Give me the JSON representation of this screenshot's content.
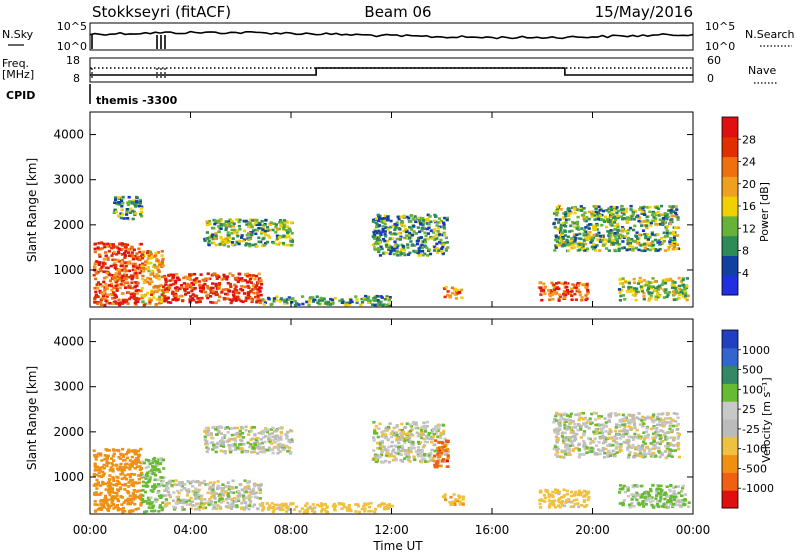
{
  "header": {
    "station": "Stokkseyri (fitACF)",
    "beam": "Beam 06",
    "date": "15/May/2016"
  },
  "noise_panel": {
    "left_label": "N.Sky",
    "right_label": "N.Search",
    "left_ticks": [
      "10^5",
      "10^0"
    ],
    "right_ticks": [
      "10^5",
      "10^0"
    ]
  },
  "freq_panel": {
    "left_label_1": "Freq.",
    "left_label_2": "[MHz]",
    "right_label": "Nave",
    "left_ticks": [
      "18",
      "8"
    ],
    "right_ticks": [
      "60",
      "0"
    ]
  },
  "cpid_panel": {
    "label": "CPID",
    "program": "themis -3300"
  },
  "colors": {
    "power_scale": [
      "#2030e0",
      "#1040a0",
      "#2e8b57",
      "#66b23a",
      "#f0d000",
      "#f0a020",
      "#f07010",
      "#e03000",
      "#e01010"
    ],
    "velocity_scale": [
      "#e01010",
      "#f06010",
      "#f09010",
      "#f0c040",
      "#bbbbbb",
      "#c8c8c8",
      "#66bb33",
      "#338866",
      "#3366cc",
      "#2040c0"
    ]
  },
  "chart_data": [
    {
      "type": "heatmap",
      "name": "power",
      "ylabel": "Slant Range [km]",
      "ylim": [
        180,
        4500
      ],
      "xlim_hours": [
        0,
        24
      ],
      "yticks": [
        1000,
        2000,
        3000,
        4000
      ],
      "colorbar_label": "Power [dB]",
      "colorbar_ticks": [
        "4",
        "8",
        "12",
        "16",
        "20",
        "24",
        "28"
      ],
      "colorbar_range": [
        0,
        32
      ],
      "regions": [
        {
          "x0": 0.1,
          "x1": 2.0,
          "y0": 200,
          "y1": 1600,
          "level": 26
        },
        {
          "x0": 2.0,
          "x1": 2.9,
          "y0": 200,
          "y1": 1400,
          "level": 20
        },
        {
          "x0": 2.9,
          "x1": 6.8,
          "y0": 250,
          "y1": 900,
          "level": 27
        },
        {
          "x0": 6.8,
          "x1": 12.0,
          "y0": 200,
          "y1": 400,
          "level": 10
        },
        {
          "x0": 4.5,
          "x1": 8.0,
          "y0": 1500,
          "y1": 2100,
          "level": 12
        },
        {
          "x0": 11.2,
          "x1": 14.2,
          "y0": 1300,
          "y1": 2200,
          "level": 10
        },
        {
          "x0": 14.0,
          "x1": 14.8,
          "y0": 350,
          "y1": 600,
          "level": 22
        },
        {
          "x0": 17.8,
          "x1": 19.8,
          "y0": 300,
          "y1": 700,
          "level": 25
        },
        {
          "x0": 18.4,
          "x1": 23.4,
          "y0": 1400,
          "y1": 2400,
          "level": 12
        },
        {
          "x0": 21.0,
          "x1": 23.8,
          "y0": 300,
          "y1": 800,
          "level": 14
        },
        {
          "x0": 0.9,
          "x1": 2.0,
          "y0": 2100,
          "y1": 2600,
          "level": 10
        }
      ]
    },
    {
      "type": "heatmap",
      "name": "velocity",
      "ylabel": "Slant Range [km]",
      "xlabel": "Time UT",
      "ylim": [
        180,
        4500
      ],
      "xlim_hours": [
        0,
        24
      ],
      "yticks": [
        1000,
        2000,
        3000,
        4000
      ],
      "xticks": [
        "00:00",
        "04:00",
        "08:00",
        "12:00",
        "16:00",
        "20:00",
        "00:00"
      ],
      "colorbar_label": "Velocity [m s⁻¹]",
      "colorbar_ticks": [
        "-1000",
        "-500",
        "-100",
        "-25",
        "25",
        "100",
        "500",
        "1000"
      ],
      "regions": [
        {
          "x0": 0.1,
          "x1": 2.0,
          "y0": 200,
          "y1": 1600,
          "velocity": -200
        },
        {
          "x0": 2.0,
          "x1": 2.9,
          "y0": 200,
          "y1": 1400,
          "velocity": 50
        },
        {
          "x0": 2.9,
          "x1": 6.8,
          "y0": 250,
          "y1": 900,
          "velocity": 0
        },
        {
          "x0": 6.8,
          "x1": 12.0,
          "y0": 200,
          "y1": 400,
          "velocity": -60
        },
        {
          "x0": 4.5,
          "x1": 8.0,
          "y0": 1500,
          "y1": 2100,
          "velocity": 0
        },
        {
          "x0": 11.2,
          "x1": 14.2,
          "y0": 1300,
          "y1": 2200,
          "velocity": 0
        },
        {
          "x0": 13.6,
          "x1": 14.2,
          "y0": 1200,
          "y1": 1800,
          "velocity": -700
        },
        {
          "x0": 14.0,
          "x1": 14.8,
          "y0": 350,
          "y1": 600,
          "velocity": -80
        },
        {
          "x0": 17.8,
          "x1": 19.8,
          "y0": 300,
          "y1": 700,
          "velocity": -60
        },
        {
          "x0": 18.4,
          "x1": 23.4,
          "y0": 1400,
          "y1": 2400,
          "velocity": 0
        },
        {
          "x0": 21.0,
          "x1": 23.8,
          "y0": 300,
          "y1": 800,
          "velocity": 30
        }
      ]
    }
  ]
}
